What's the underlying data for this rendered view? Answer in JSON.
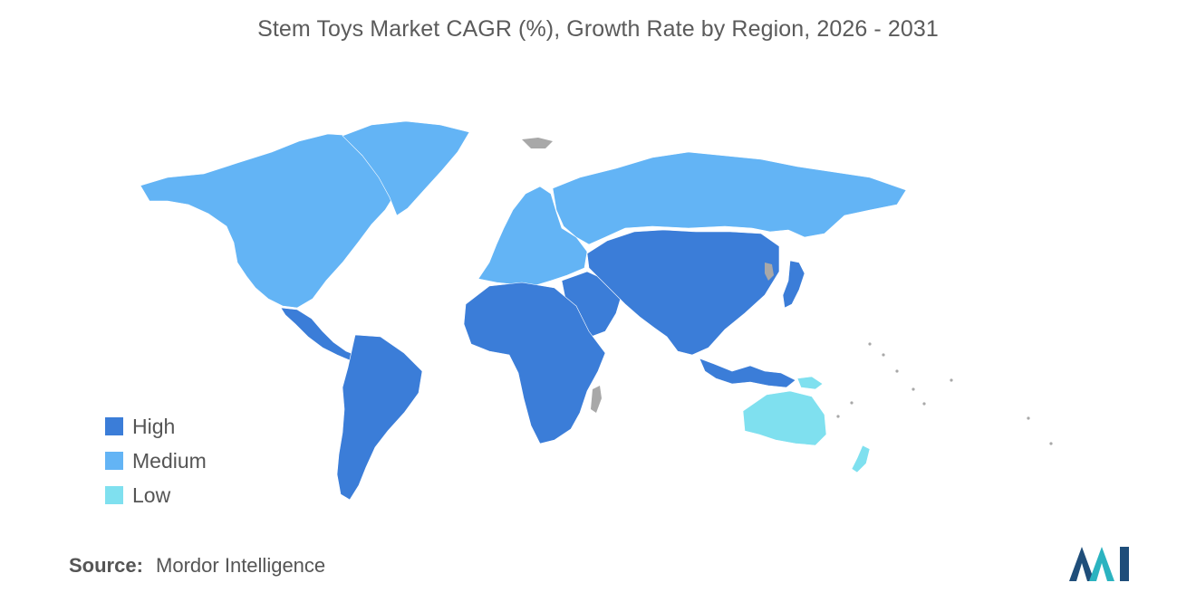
{
  "title": "Stem Toys Market CAGR (%), Growth Rate by Region, 2026 - 2031",
  "colors": {
    "high": "#3b7dd8",
    "medium": "#63b4f5",
    "low": "#7fe0ef",
    "no_data": "#a8a8a8",
    "logo_dark": "#1f4e7a",
    "logo_teal": "#2bb3c0"
  },
  "legend": [
    {
      "label": "High",
      "color": "#3b7dd8"
    },
    {
      "label": "Medium",
      "color": "#63b4f5"
    },
    {
      "label": "Low",
      "color": "#7fe0ef"
    }
  ],
  "regions": [
    {
      "id": "north-america",
      "category": "medium"
    },
    {
      "id": "greenland",
      "category": "medium"
    },
    {
      "id": "europe",
      "category": "medium"
    },
    {
      "id": "russia",
      "category": "medium"
    },
    {
      "id": "south-america",
      "category": "high"
    },
    {
      "id": "central-america",
      "category": "high"
    },
    {
      "id": "africa",
      "category": "high"
    },
    {
      "id": "middle-east",
      "category": "high"
    },
    {
      "id": "asia",
      "category": "high"
    },
    {
      "id": "japan",
      "category": "high"
    },
    {
      "id": "southeast-asia",
      "category": "high"
    },
    {
      "id": "australia",
      "category": "low"
    },
    {
      "id": "new-zealand",
      "category": "low"
    },
    {
      "id": "papua-new-guinea",
      "category": "low"
    }
  ],
  "source": {
    "label": "Source:",
    "value": "Mordor Intelligence"
  }
}
